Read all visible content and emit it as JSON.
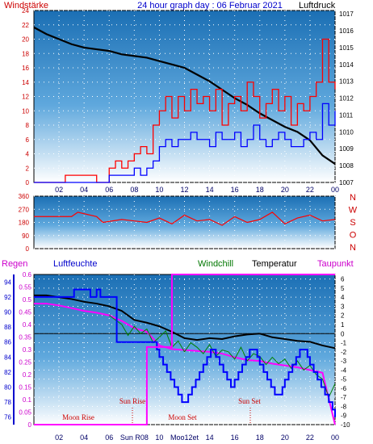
{
  "chart_data": [
    {
      "type": "line",
      "title": "24 hour graph day : 06 Februar 2021",
      "left_label": "Windstärke",
      "right_label": "Luftdruck",
      "x_ticks": [
        "02",
        "04",
        "06",
        "08",
        "10",
        "12",
        "14",
        "16",
        "18",
        "20",
        "22",
        "00"
      ],
      "left_axis": {
        "ticks": [
          0,
          2,
          4,
          6,
          8,
          10,
          12,
          14,
          16,
          18,
          20,
          22,
          24
        ],
        "ylim": [
          0,
          24
        ]
      },
      "right_axis": {
        "ticks": [
          1007,
          1008,
          1009,
          1010,
          1011,
          1012,
          1013,
          1014,
          1015,
          1016,
          1017
        ],
        "ylim": [
          1007,
          1017.2
        ]
      },
      "series": [
        {
          "color": "#000000",
          "x": [
            0,
            1,
            2,
            3,
            4,
            5,
            6,
            7,
            8,
            9,
            10,
            11,
            12,
            13,
            14,
            15,
            16,
            17,
            18,
            19,
            20,
            21,
            22,
            23,
            24
          ],
          "y": [
            1016.2,
            1015.8,
            1015.5,
            1015.2,
            1015.0,
            1014.9,
            1014.8,
            1014.6,
            1014.5,
            1014.4,
            1014.2,
            1014.0,
            1013.8,
            1013.4,
            1013.0,
            1012.5,
            1012.0,
            1011.6,
            1011.1,
            1010.7,
            1010.3,
            1010.0,
            1009.5,
            1008.6,
            1008.1
          ]
        },
        {
          "color": "#ff0000",
          "x": [
            0,
            2,
            2.5,
            5,
            5.5,
            6,
            6.5,
            7,
            7.5,
            8,
            8.5,
            9,
            9.5,
            10,
            10.5,
            11,
            11.5,
            12,
            12.5,
            13,
            13.5,
            14,
            14.5,
            15,
            15.5,
            16,
            16.5,
            17,
            17.5,
            18,
            18.5,
            19,
            19.5,
            20,
            20.5,
            21,
            21.5,
            22,
            22.5,
            23,
            23.5,
            24
          ],
          "y": [
            0,
            0,
            1,
            0,
            0,
            2,
            3,
            2,
            3,
            4,
            5,
            4,
            8,
            10,
            12,
            9,
            12,
            10,
            13,
            11,
            12,
            10,
            13,
            8,
            11,
            12,
            10,
            14,
            12,
            9,
            11,
            13,
            10,
            12,
            8,
            11,
            10,
            12,
            14,
            20,
            14,
            13
          ]
        },
        {
          "color": "#0000ff",
          "x": [
            0,
            5.5,
            6,
            7,
            8,
            8.5,
            9,
            9.5,
            10,
            10.5,
            11,
            11.5,
            12,
            12.5,
            13,
            13.5,
            14,
            14.5,
            15,
            15.5,
            16,
            16.5,
            17,
            17.5,
            18,
            18.5,
            19,
            19.5,
            20,
            20.5,
            21,
            21.5,
            22,
            22.5,
            23,
            23.5,
            24
          ],
          "y": [
            0,
            0,
            1,
            1,
            2,
            1,
            2,
            3,
            5,
            6,
            5,
            6,
            6,
            7,
            6,
            6,
            5,
            7,
            6,
            6,
            7,
            5,
            6,
            8,
            6,
            5,
            6,
            7,
            6,
            5,
            5,
            6,
            7,
            6,
            11,
            8,
            10
          ]
        }
      ]
    },
    {
      "type": "line",
      "right_label_letters": [
        "N",
        "W",
        "S",
        "O",
        "N"
      ],
      "left_axis": {
        "ticks": [
          0,
          90,
          180,
          270,
          360
        ],
        "ylim": [
          0,
          360
        ]
      },
      "x_ticks": [
        "02",
        "04",
        "06",
        "08",
        "10",
        "12",
        "14",
        "16",
        "18",
        "20",
        "22",
        "00"
      ],
      "series": [
        {
          "color": "#ff0000",
          "x": [
            0,
            3,
            3.5,
            5,
            5.5,
            7,
            8,
            9,
            10,
            11,
            12,
            13,
            14,
            15,
            16,
            17,
            18,
            19,
            20,
            21,
            22,
            23,
            24
          ],
          "y": [
            220,
            220,
            250,
            220,
            180,
            200,
            190,
            180,
            210,
            170,
            230,
            190,
            200,
            160,
            220,
            180,
            200,
            250,
            170,
            210,
            230,
            190,
            200
          ]
        }
      ]
    },
    {
      "type": "line",
      "labels": {
        "rain": "Regen",
        "humidity": "Luftfeuchte",
        "windchill": "Windchill",
        "temperature": "Temperatur",
        "dewpoint": "Taupunkt"
      },
      "humidity_axis": {
        "ticks": [
          76,
          78,
          80,
          82,
          84,
          86,
          88,
          90,
          92,
          94
        ],
        "ylim": [
          75,
          95
        ]
      },
      "rain_axis": {
        "ticks": [
          0,
          0.05,
          0.1,
          0.15,
          0.2,
          0.25,
          0.3,
          0.35,
          0.4,
          0.45,
          0.5,
          0.55,
          0.6
        ],
        "ylim": [
          0,
          0.6
        ]
      },
      "temp_axis": {
        "ticks": [
          6,
          5,
          4,
          3,
          2,
          1,
          0,
          -1,
          -2,
          -3,
          -4,
          -5,
          -6,
          -7,
          -8,
          -9,
          -10
        ],
        "ylim": [
          -10,
          6.5
        ]
      },
      "x_ticks": [
        "02",
        "04",
        "06",
        "Sun R08",
        "10",
        "Moo12et",
        "14",
        "16",
        "18",
        "20",
        "22",
        "00"
      ],
      "annotations": [
        "Moon Rise",
        "Sun Rise",
        "Moon Set",
        "Sun Set"
      ],
      "series": [
        {
          "color": "#000000",
          "x": [
            0,
            1,
            2,
            3,
            4,
            5,
            6,
            7,
            8,
            9,
            10,
            11,
            12,
            13,
            14,
            15,
            16,
            17,
            18,
            19,
            20,
            21,
            22,
            23,
            24
          ],
          "y": [
            4.2,
            4.2,
            4.0,
            3.8,
            3.5,
            3.3,
            3.0,
            2.5,
            1.5,
            1.2,
            0.8,
            0.2,
            -0.5,
            -0.7,
            -0.5,
            -0.6,
            -0.3,
            -0.1,
            0.0,
            -0.4,
            -0.6,
            -0.8,
            -0.9,
            -1.3,
            -1.6
          ]
        },
        {
          "color": "#ff00ff",
          "x": [
            0,
            1,
            2,
            3,
            4,
            5,
            6,
            7,
            8,
            9,
            10,
            11,
            12,
            13,
            14,
            15,
            16,
            17,
            18,
            19,
            20,
            21,
            22,
            23,
            24
          ],
          "y": [
            3.3,
            3.3,
            3.1,
            2.8,
            2.5,
            2.3,
            2.0,
            1.4,
            0.6,
            0.2,
            -1.3,
            -1.7,
            -1.8,
            -1.9,
            -2.0,
            -2.2,
            -2.6,
            -2.9,
            -3.0,
            -3.3,
            -3.5,
            -3.7,
            -4.0,
            -4.3,
            -10.0
          ]
        },
        {
          "color": "#008000",
          "x": [
            6,
            7,
            7.5,
            8,
            8.5,
            9,
            9.5,
            10,
            10.5,
            11,
            11.5,
            12,
            12.5,
            13,
            13.5,
            14,
            14.5,
            15,
            15.5,
            16,
            16.5,
            17,
            17.5,
            18,
            18.5,
            19,
            19.5,
            20,
            20.5,
            21,
            21.5,
            22,
            22.5,
            23,
            23.5,
            24
          ],
          "y": [
            2.0,
            1.0,
            -0.2,
            0.8,
            0.0,
            0.5,
            -1.0,
            -0.4,
            0.3,
            -1.5,
            -0.8,
            -2.0,
            -1.0,
            -1.5,
            -2.2,
            -1.2,
            -2.5,
            -1.8,
            -2.0,
            -2.8,
            -1.5,
            -3.0,
            -2.2,
            -2.5,
            -3.4,
            -2.6,
            -3.3,
            -2.8,
            -3.8,
            -3.0,
            -4.0,
            -3.5,
            -4.5,
            -5.0,
            -7.0,
            -5.5
          ]
        },
        {
          "color": "#0000ff",
          "x": [
            0,
            3,
            3.2,
            4.2,
            4.5,
            5,
            5.3,
            6.5,
            6.6,
            9.5,
            9.8,
            10,
            10.3,
            10.6,
            10.9,
            11.2,
            11.5,
            11.8,
            12,
            12.3,
            12.6,
            12.9,
            13.2,
            13.5,
            13.8,
            14.1,
            14.3,
            14.5,
            14.8,
            15.1,
            15.4,
            15.7,
            16,
            16.3,
            16.6,
            16.9,
            17.2,
            17.5,
            17.8,
            18,
            18.3,
            18.6,
            18.9,
            19.2,
            19.5,
            19.8,
            20,
            20.3,
            20.6,
            20.9,
            21.2,
            21.5,
            21.8,
            22,
            22.3,
            22.6,
            22.9,
            23.2,
            23.5,
            23.8,
            24
          ],
          "y": [
            92,
            92,
            93,
            93,
            92,
            93,
            92,
            92,
            86,
            86,
            85,
            84,
            83,
            82,
            81,
            80,
            79,
            78,
            78,
            79,
            80,
            81,
            82,
            83,
            84,
            85,
            85,
            84,
            83,
            82,
            81,
            80,
            81,
            82,
            83,
            84,
            85,
            85,
            84,
            83,
            82,
            81,
            80,
            79,
            79,
            80,
            81,
            82,
            83,
            84,
            85,
            85,
            84,
            83,
            82,
            81,
            80,
            79,
            78,
            77,
            76
          ]
        },
        {
          "color": "#ff00ff",
          "x": [
            0,
            9,
            9,
            11,
            11,
            24
          ],
          "y": [
            0,
            0,
            0.31,
            0.31,
            0.6,
            0.6
          ],
          "axis": "rain"
        }
      ]
    }
  ]
}
